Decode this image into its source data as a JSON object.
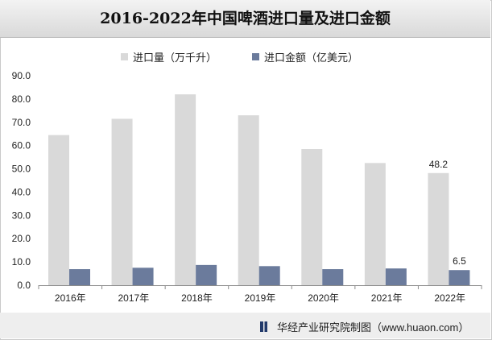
{
  "chart_data": {
    "type": "bar",
    "title": "2016-2022年中国啤酒进口量及进口金额",
    "categories": [
      "2016年",
      "2017年",
      "2018年",
      "2019年",
      "2020年",
      "2021年",
      "2022年"
    ],
    "series": [
      {
        "name": "进口量（万千升）",
        "values": [
          64.5,
          71.5,
          82.0,
          73.0,
          58.5,
          52.5,
          48.2
        ],
        "color": "#d9d9d9"
      },
      {
        "name": "进口金额（亿美元）",
        "values": [
          6.9,
          7.5,
          8.7,
          8.2,
          6.9,
          7.2,
          6.5
        ],
        "color": "#6b7b9c"
      }
    ],
    "data_labels": [
      {
        "series": 0,
        "index": 6,
        "text": "48.2"
      },
      {
        "series": 1,
        "index": 6,
        "text": "6.5"
      }
    ],
    "yticks": [
      "0.0",
      "10.0",
      "20.0",
      "30.0",
      "40.0",
      "50.0",
      "60.0",
      "70.0",
      "80.0",
      "90.0"
    ],
    "ylim": [
      0,
      90
    ],
    "grid": false,
    "legend_position": "top"
  },
  "footer": {
    "source": "华经产业研究院制图（www.huaon.com）"
  }
}
